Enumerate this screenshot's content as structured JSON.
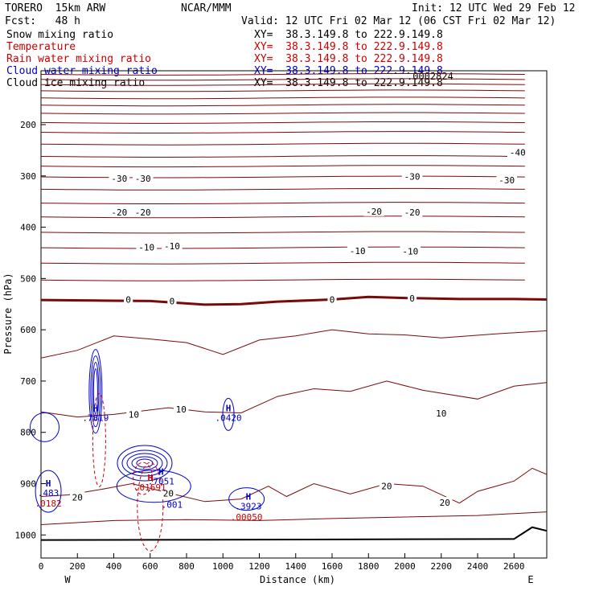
{
  "header": {
    "model": "TORERO  15km ARW",
    "org": "NCAR/MMM",
    "init": "Init: 12 UTC Wed 29 Feb 12",
    "fcst": "Fcst:   48 h",
    "valid": "Valid: 12 UTC Fri 02 Mar 12 (06 CST Fri 02 Mar 12)"
  },
  "fields": [
    {
      "name": "Snow mixing ratio",
      "xy": "",
      "color": "#000000"
    },
    {
      "name": "Temperature",
      "xy": "XY=  38.3.149.8 to 222.9.149.8",
      "color": "#cc0000"
    },
    {
      "name": "Rain water mixing ratio",
      "xy": "XY=  38.3.149.8 to 222.9.149.8",
      "color": "#cc0000"
    },
    {
      "name": "Cloud water mixing ratio",
      "xy": "XY=  38.3.149.8 to 222.9.149.8",
      "color": "#0000cc"
    },
    {
      "name": "Cloud ice mixing ratio",
      "xy": "XY=  38.3.149.8 to 222.9.149.8",
      "color": "#000000"
    }
  ],
  "xy_snow": "XY=  38.3.149.8 to 222.9.149.8",
  "top_label": ".0002824",
  "chart_data": {
    "type": "cross-section contour",
    "xlabel": "Distance (km)",
    "ylabel": "Pressure (hPa)",
    "xlim": [
      0,
      2780
    ],
    "ylim": [
      1045,
      95
    ],
    "x_ticks": [
      "0",
      "200",
      "400",
      "600",
      "800",
      "1000",
      "1200",
      "1400",
      "1600",
      "1800",
      "2000",
      "2200",
      "2400",
      "2600"
    ],
    "y_ticks": [
      "200",
      "300",
      "400",
      "500",
      "600",
      "700",
      "800",
      "900",
      "1000"
    ],
    "x_end_labels": {
      "left": "W",
      "right": "E"
    },
    "temperature_isotherm_labels": [
      {
        "value": "-40",
        "x": 2620,
        "p": 254
      },
      {
        "value": "-30",
        "x": 430,
        "p": 305
      },
      {
        "value": "-30",
        "x": 560,
        "p": 305
      },
      {
        "value": "-30",
        "x": 2040,
        "p": 301
      },
      {
        "value": "-30",
        "x": 2560,
        "p": 308
      },
      {
        "value": "-20",
        "x": 430,
        "p": 371
      },
      {
        "value": "-20",
        "x": 560,
        "p": 371
      },
      {
        "value": "-20",
        "x": 1830,
        "p": 369
      },
      {
        "value": "-20",
        "x": 2040,
        "p": 371
      },
      {
        "value": "-10",
        "x": 580,
        "p": 439
      },
      {
        "value": "-10",
        "x": 720,
        "p": 437
      },
      {
        "value": "-10",
        "x": 1740,
        "p": 446
      },
      {
        "value": "-10",
        "x": 2030,
        "p": 447
      },
      {
        "value": "0",
        "x": 480,
        "p": 541
      },
      {
        "value": "0",
        "x": 720,
        "p": 544
      },
      {
        "value": "0",
        "x": 1600,
        "p": 541
      },
      {
        "value": "0",
        "x": 2040,
        "p": 539
      },
      {
        "value": "10",
        "x": 510,
        "p": 765
      },
      {
        "value": "10",
        "x": 770,
        "p": 755
      },
      {
        "value": "10",
        "x": 2200,
        "p": 763
      },
      {
        "value": "20",
        "x": 200,
        "p": 927
      },
      {
        "value": "20",
        "x": 700,
        "p": 919
      },
      {
        "value": "20",
        "x": 1900,
        "p": 905
      },
      {
        "value": "20",
        "x": 2220,
        "p": 937
      }
    ],
    "extremum_labels": [
      {
        "mark": "H",
        "value": ".7819",
        "x": 300,
        "p": 768,
        "color": "#0000cc"
      },
      {
        "mark": "H",
        "value": ".0420",
        "x": 1030,
        "p": 768,
        "color": "#0000cc"
      },
      {
        "mark": "H",
        "value": ".7051",
        "x": 660,
        "p": 892,
        "color": "#0000cc"
      },
      {
        "mark": "H",
        "value": ".01691",
        "x": 600,
        "p": 904,
        "color": "#cc0000"
      },
      {
        "mark": "H",
        "value": ".483",
        "x": 40,
        "p": 915,
        "color": "#0000cc"
      },
      {
        "mark": "",
        "value": ".0182",
        "x": 40,
        "p": 935,
        "color": "#cc0000"
      },
      {
        "mark": "",
        "value": ".001",
        "x": 720,
        "p": 938,
        "color": "#0000cc"
      },
      {
        "mark": "H",
        "value": ".3923",
        "x": 1140,
        "p": 941,
        "color": "#0000cc"
      },
      {
        "mark": "",
        "value": ".00050",
        "x": 1130,
        "p": 962,
        "color": "#cc0000"
      }
    ]
  }
}
